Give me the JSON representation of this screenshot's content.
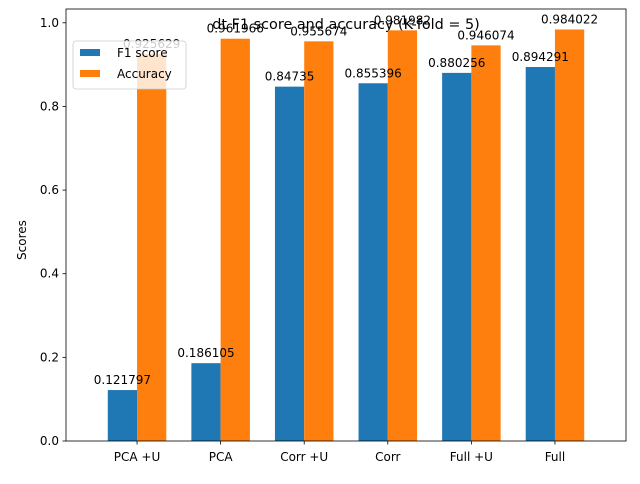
{
  "chart_data": {
    "type": "bar",
    "title": "dt F1 score and accuracy (K-fold = 5)",
    "xlabel": "",
    "ylabel": "Scores",
    "categories": [
      "PCA +U",
      "PCA",
      "Corr +U",
      "Corr",
      "Full +U",
      "Full"
    ],
    "series": [
      {
        "name": "F1 score",
        "color": "#1f77b4",
        "values": [
          0.121797,
          0.186105,
          0.84735,
          0.855396,
          0.880256,
          0.894291
        ],
        "labels": [
          "0.121797",
          "0.186105",
          "0.84735",
          "0.855396",
          "0.880256",
          "0.894291"
        ]
      },
      {
        "name": "Accuracy",
        "color": "#ff7f0e",
        "values": [
          0.925629,
          0.961966,
          0.955674,
          0.981982,
          0.946074,
          0.984022
        ],
        "labels": [
          "0.925629",
          "0.961966",
          "0.955674",
          "0.981982",
          "0.946074",
          "0.984022"
        ]
      }
    ],
    "ylim": [
      0.0,
      1.033
    ],
    "yticks": [
      "0.0",
      "0.2",
      "0.4",
      "0.6",
      "0.8",
      "1.0"
    ],
    "ytick_values": [
      0.0,
      0.2,
      0.4,
      0.6,
      0.8,
      1.0
    ],
    "grid": false,
    "legend_position": "top-left"
  }
}
